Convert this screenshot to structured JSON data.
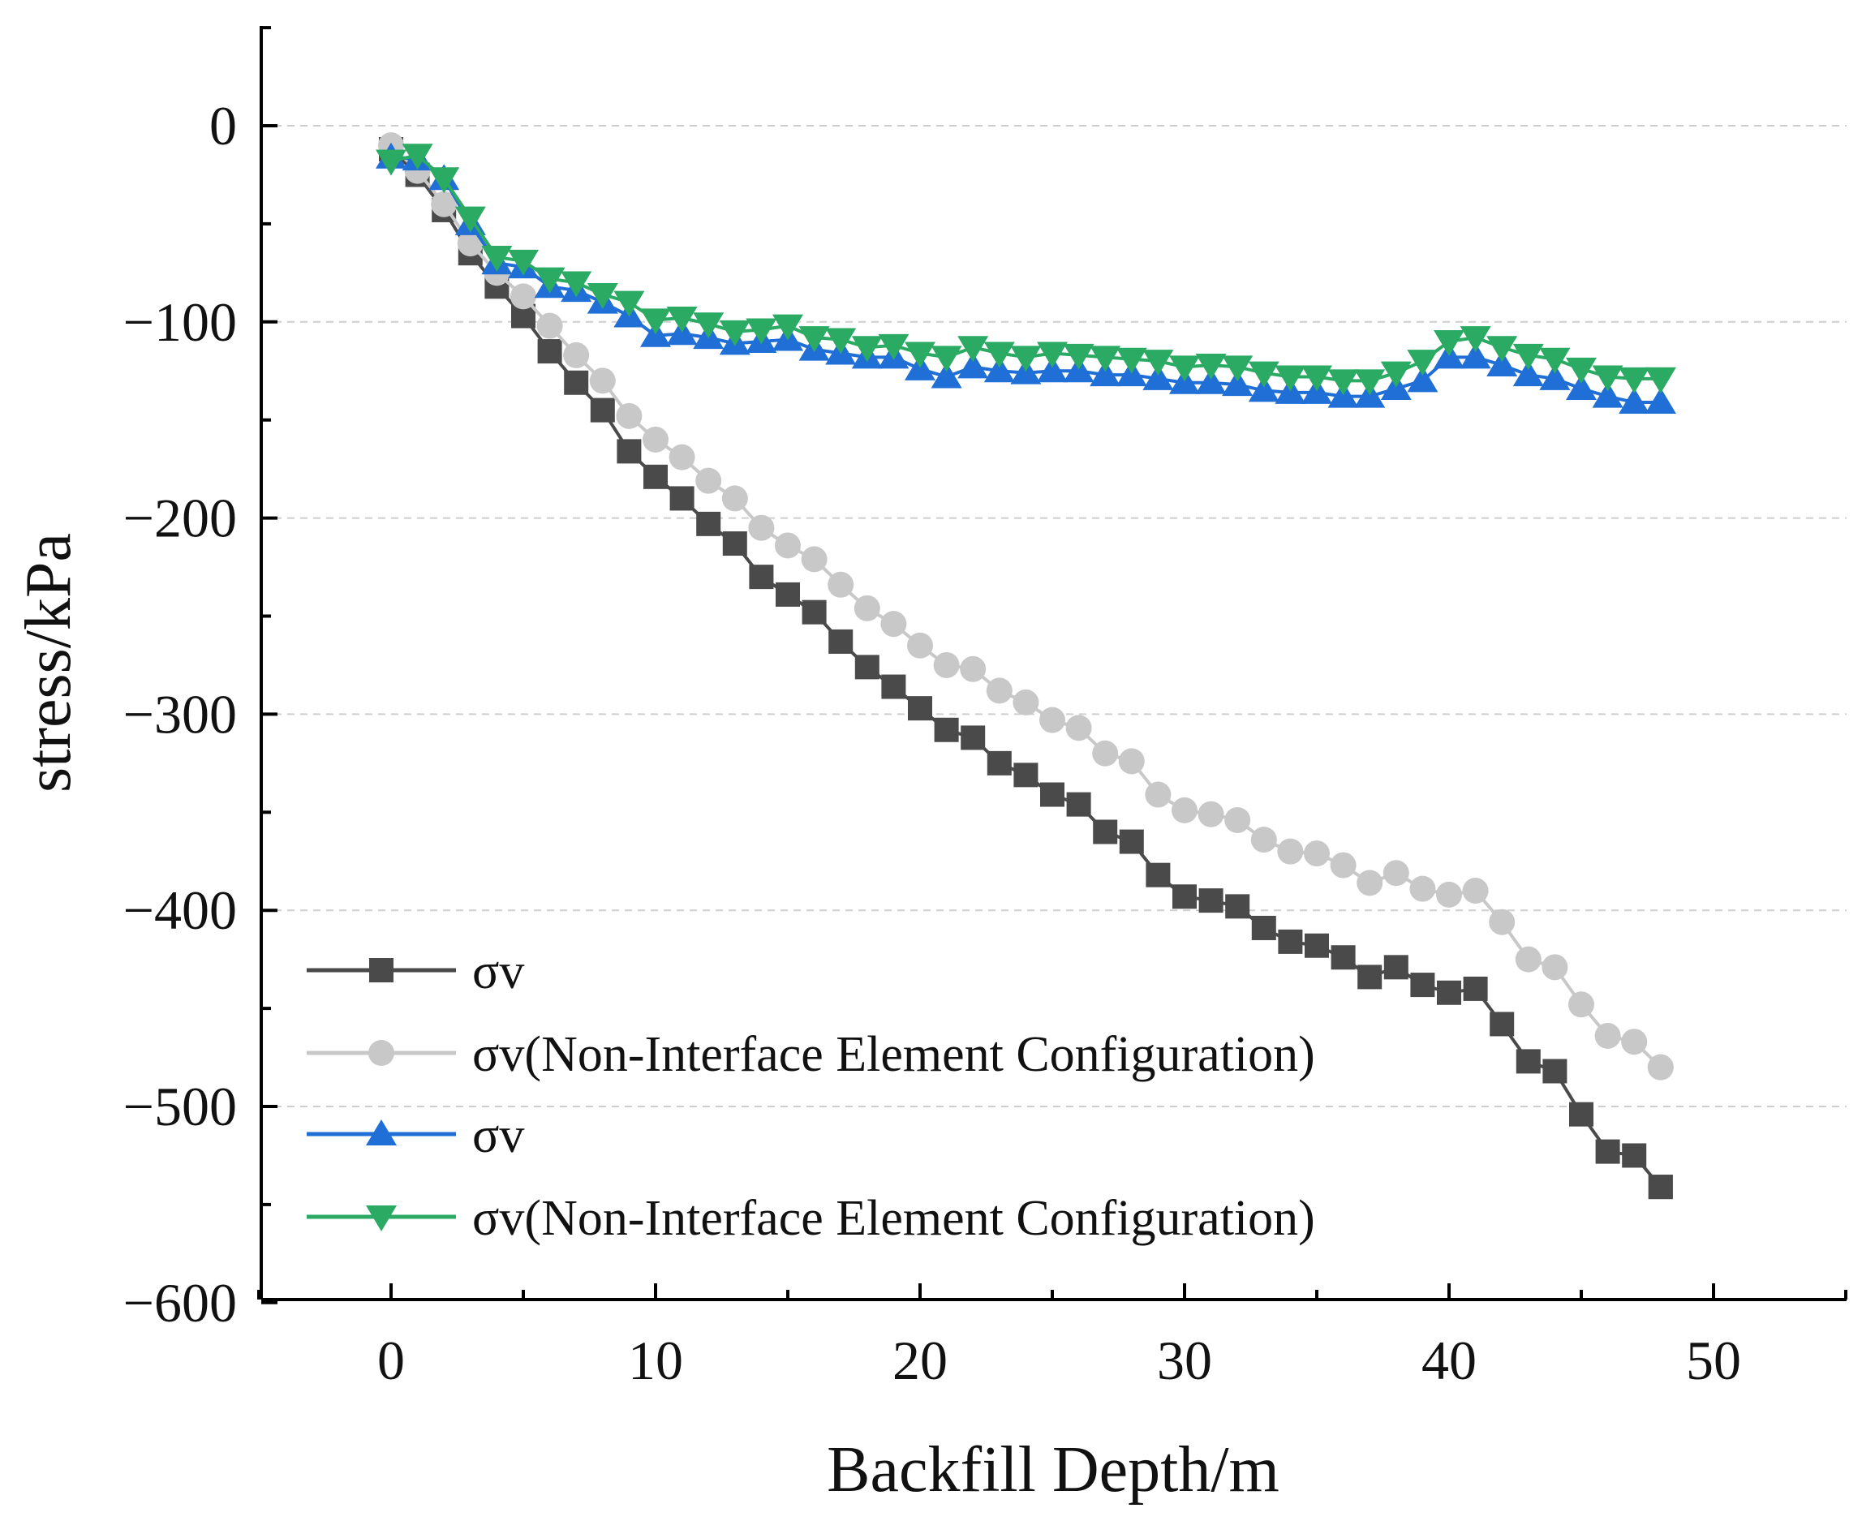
{
  "chart_data": {
    "type": "line",
    "title": "",
    "xlabel": "Backfill Depth/m",
    "ylabel": "stress/kPa",
    "xlim": [
      -5,
      55
    ],
    "ylim": [
      -600,
      50
    ],
    "xticks": [
      0,
      10,
      20,
      30,
      40,
      50
    ],
    "xtick_labels": [
      "0",
      "10",
      "20",
      "30",
      "40",
      "50"
    ],
    "yticks": [
      0,
      -100,
      -200,
      -300,
      -400,
      -500,
      -600
    ],
    "ytick_labels": [
      "0",
      "−100",
      "−200",
      "−300",
      "−400",
      "−500",
      "−600"
    ],
    "grid": "horizontal dashed",
    "legend_position": "bottom-left",
    "x": [
      0,
      1,
      2,
      3,
      4,
      5,
      6,
      7,
      8,
      9,
      10,
      11,
      12,
      13,
      14,
      15,
      16,
      17,
      18,
      19,
      20,
      21,
      22,
      23,
      24,
      25,
      26,
      27,
      28,
      29,
      30,
      31,
      32,
      33,
      34,
      35,
      36,
      37,
      38,
      39,
      40,
      41,
      42,
      43,
      44,
      45,
      46,
      47,
      48,
      48
    ],
    "series": [
      {
        "name": "σv",
        "color": "#4a4a4a",
        "marker": "square",
        "values": [
          -12,
          -25,
          -43,
          -65,
          -82,
          -97,
          -115,
          -131,
          -145,
          -166,
          -179,
          -190,
          -203,
          -213,
          -230,
          -239,
          -248,
          -263,
          -276,
          -286,
          -297,
          -308,
          -312,
          -325,
          -331,
          -341,
          -346,
          -360,
          -365,
          -382,
          -393,
          -395,
          -398,
          -409,
          -416,
          -418,
          -424,
          -434,
          -429,
          -438,
          -442,
          -440,
          -458,
          -477,
          -482,
          -504,
          -523,
          -525,
          -541,
          -541
        ]
      },
      {
        "name": "σv(Non-Interface Element Configuration)",
        "color": "#c8c8c8",
        "marker": "circle",
        "values": [
          -10,
          -23,
          -40,
          -60,
          -75,
          -87,
          -102,
          -117,
          -130,
          -148,
          -160,
          -169,
          -181,
          -190,
          -205,
          -214,
          -221,
          -234,
          -246,
          -254,
          -265,
          -275,
          -277,
          -288,
          -294,
          -303,
          -307,
          -320,
          -324,
          -341,
          -349,
          -351,
          -354,
          -364,
          -370,
          -371,
          -377,
          -386,
          -381,
          -389,
          -392,
          -390,
          -406,
          -425,
          -429,
          -448,
          -464,
          -467,
          -480,
          -480
        ]
      },
      {
        "name": "σv",
        "color": "#1f6fd6",
        "marker": "triangle-up",
        "values": [
          -16,
          -17,
          -27,
          -50,
          -70,
          -72,
          -82,
          -84,
          -90,
          -97,
          -107,
          -106,
          -108,
          -111,
          -110,
          -109,
          -114,
          -116,
          -118,
          -118,
          -124,
          -128,
          -123,
          -125,
          -126,
          -125,
          -125,
          -127,
          -127,
          -129,
          -131,
          -131,
          -132,
          -135,
          -136,
          -136,
          -138,
          -138,
          -134,
          -130,
          -118,
          -118,
          -122,
          -127,
          -129,
          -134,
          -138,
          -141,
          -141,
          -141
        ]
      },
      {
        "name": "σv(Non-Interface Element Configuration)",
        "color": "#2aaa63",
        "marker": "triangle-down",
        "values": [
          -18,
          -15,
          -27,
          -47,
          -67,
          -69,
          -78,
          -80,
          -86,
          -90,
          -99,
          -98,
          -101,
          -105,
          -104,
          -102,
          -108,
          -109,
          -113,
          -112,
          -116,
          -118,
          -113,
          -116,
          -118,
          -116,
          -117,
          -118,
          -119,
          -120,
          -123,
          -122,
          -123,
          -126,
          -128,
          -128,
          -130,
          -130,
          -126,
          -120,
          -110,
          -108,
          -113,
          -117,
          -119,
          -124,
          -128,
          -129,
          -129,
          -129
        ]
      }
    ]
  }
}
